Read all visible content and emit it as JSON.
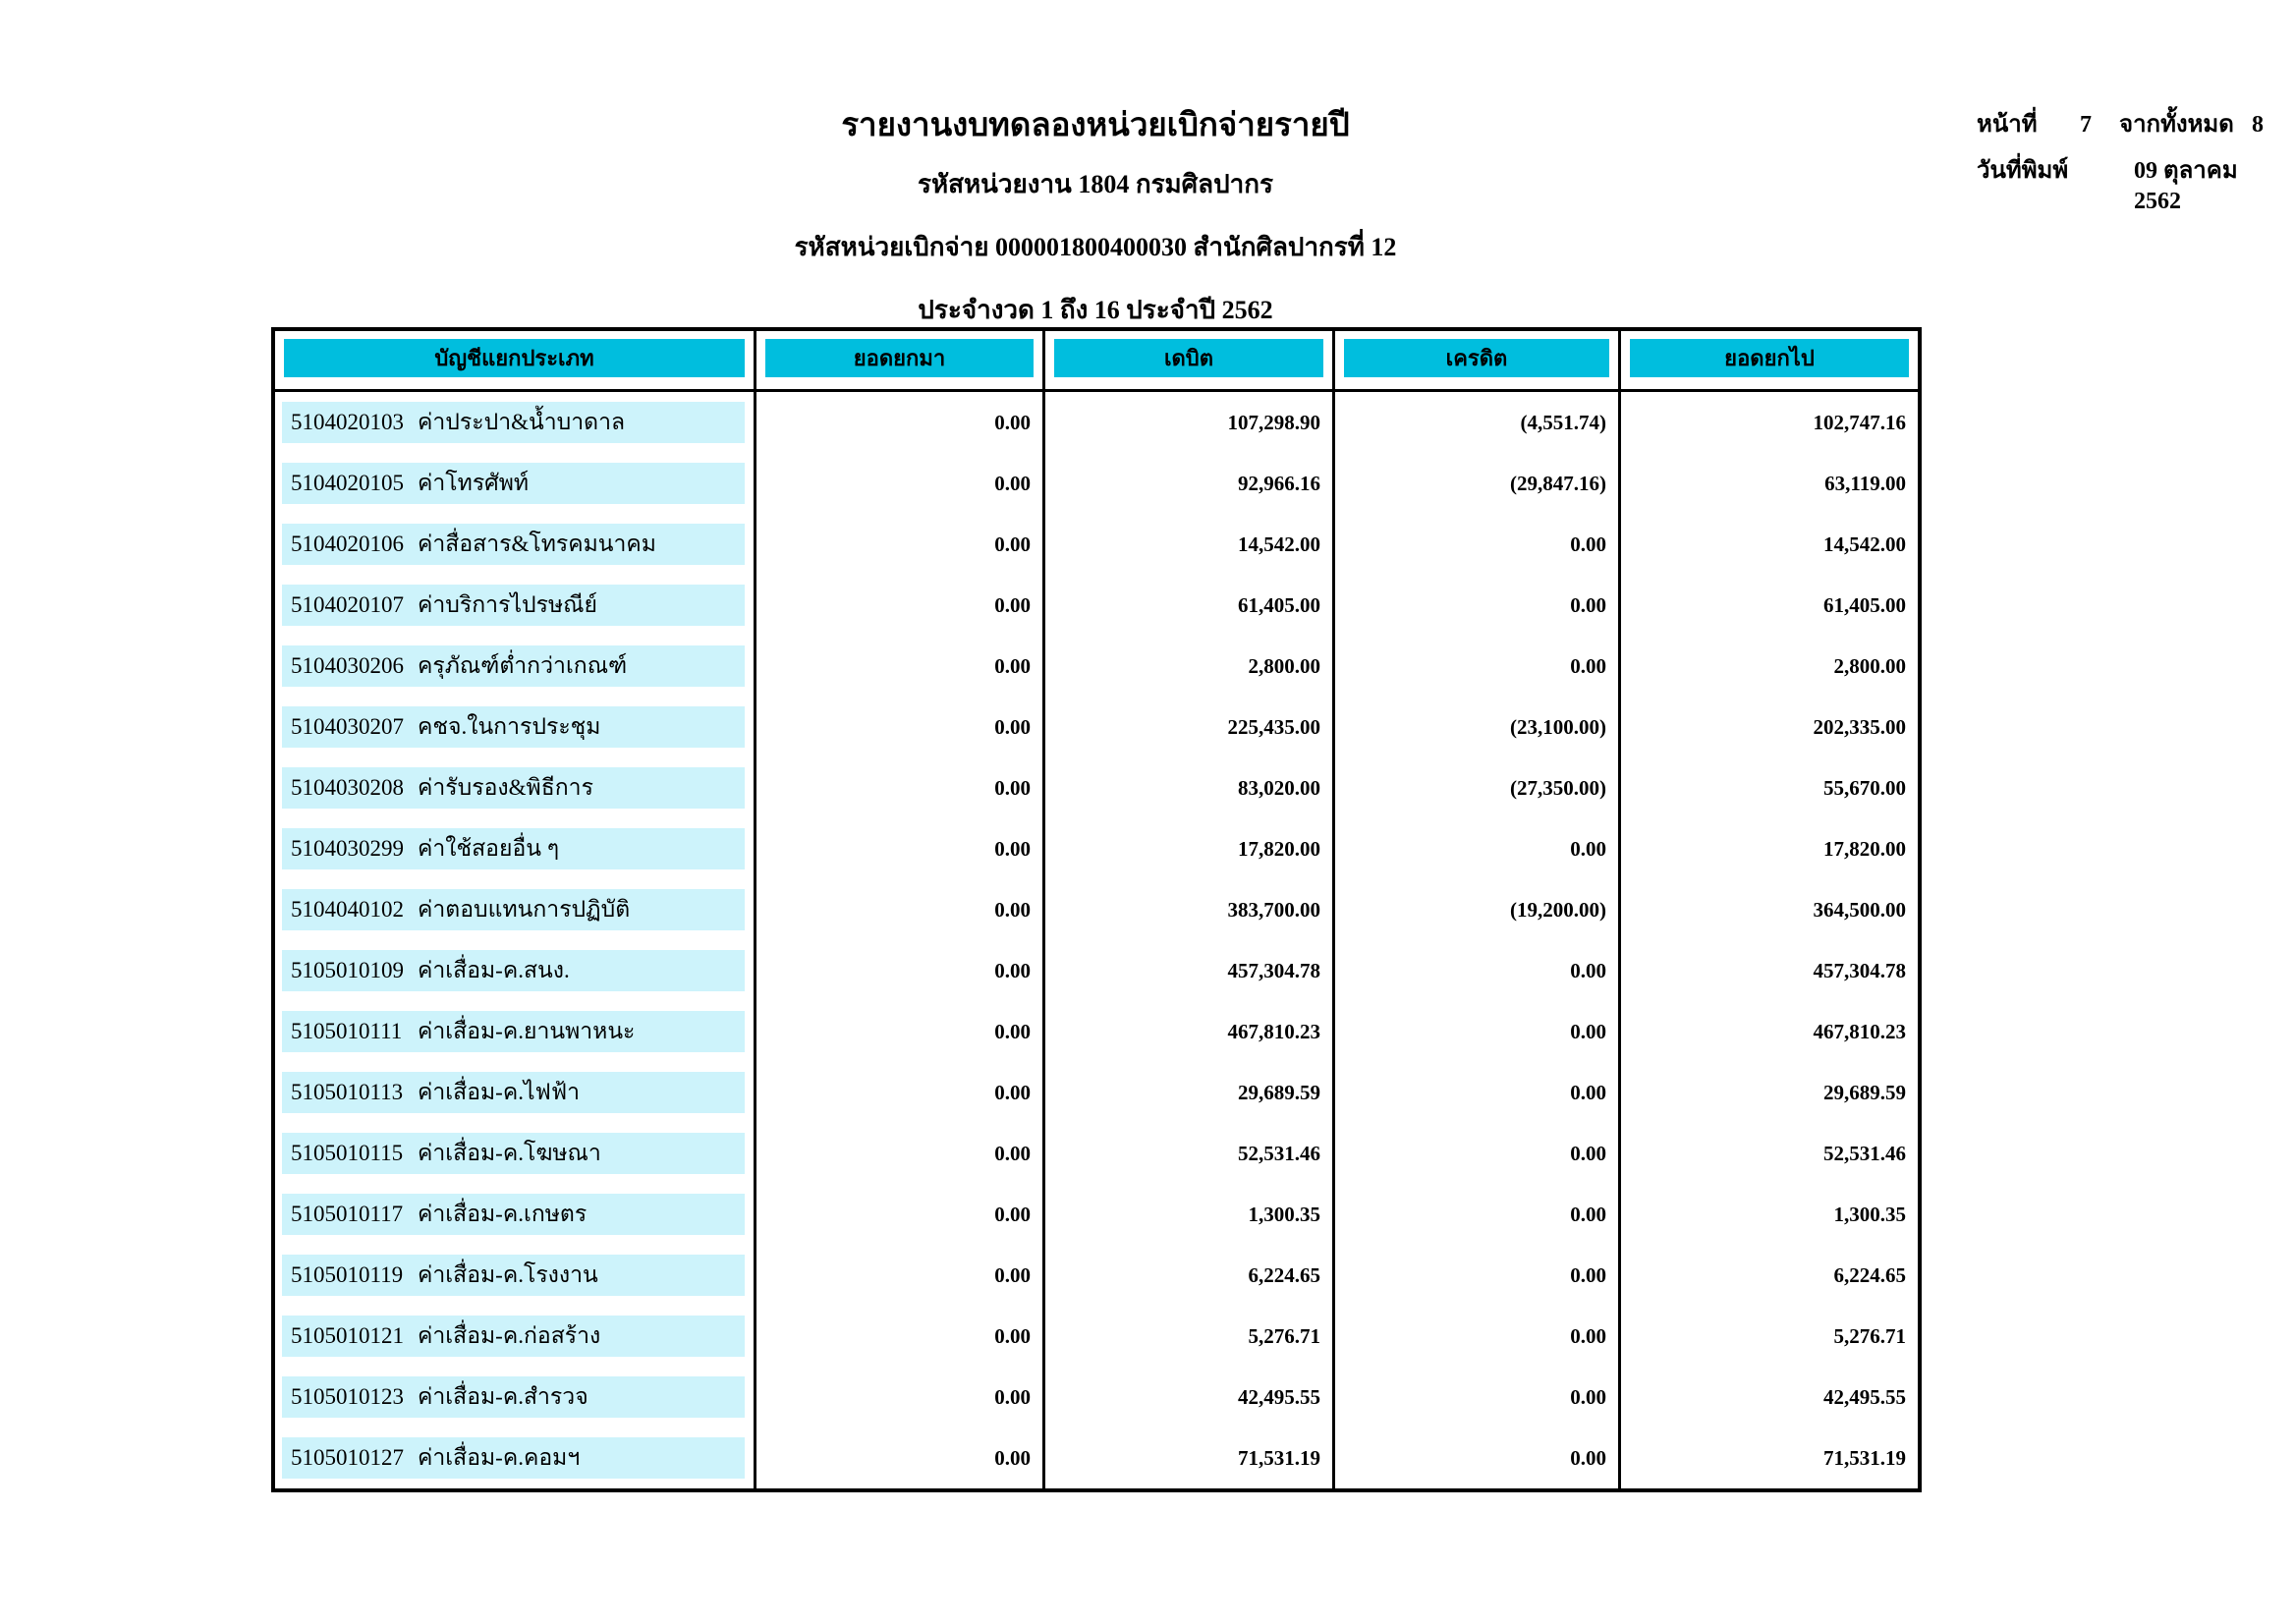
{
  "page": {
    "title": "รายงานงบทดลองหน่วยเบิกจ่ายรายปี",
    "subtitle_agency": "รหัสหน่วยงาน 1804 กรมศิลปากร",
    "subtitle_unit": "รหัสหน่วยเบิกจ่าย 000001800400030 สำนักศิลปากรที่ 12",
    "subtitle_period": "ประจำงวด 1 ถึง 16 ประจำปี 2562",
    "page_label": "หน้าที่",
    "page_number": "7",
    "total_label": "จากทั้งหมด",
    "total_pages": "8",
    "print_date_label": "วันที่พิมพ์",
    "print_date": "09 ตุลาคม 2562"
  },
  "colors": {
    "header_bg": "#00BEDE",
    "row_band_bg": "#CDF3FB",
    "border": "#000000"
  },
  "table": {
    "headers": [
      "บัญชีแยกประเภท",
      "ยอดยกมา",
      "เดบิต",
      "เครดิต",
      "ยอดยกไป"
    ],
    "rows": [
      {
        "code": "5104020103",
        "name": "ค่าประปา&น้ำบาดาล",
        "carry": "0.00",
        "debit": "107,298.90",
        "credit": "(4,551.74)",
        "balance": "102,747.16"
      },
      {
        "code": "5104020105",
        "name": "ค่าโทรศัพท์",
        "carry": "0.00",
        "debit": "92,966.16",
        "credit": "(29,847.16)",
        "balance": "63,119.00"
      },
      {
        "code": "5104020106",
        "name": "ค่าสื่อสาร&โทรคมนาคม",
        "carry": "0.00",
        "debit": "14,542.00",
        "credit": "0.00",
        "balance": "14,542.00"
      },
      {
        "code": "5104020107",
        "name": "ค่าบริการไปรษณีย์",
        "carry": "0.00",
        "debit": "61,405.00",
        "credit": "0.00",
        "balance": "61,405.00"
      },
      {
        "code": "5104030206",
        "name": "ครุภัณฑ์ต่ำกว่าเกณฑ์",
        "carry": "0.00",
        "debit": "2,800.00",
        "credit": "0.00",
        "balance": "2,800.00"
      },
      {
        "code": "5104030207",
        "name": "คชจ.ในการประชุม",
        "carry": "0.00",
        "debit": "225,435.00",
        "credit": "(23,100.00)",
        "balance": "202,335.00"
      },
      {
        "code": "5104030208",
        "name": "ค่ารับรอง&พิธีการ",
        "carry": "0.00",
        "debit": "83,020.00",
        "credit": "(27,350.00)",
        "balance": "55,670.00"
      },
      {
        "code": "5104030299",
        "name": "ค่าใช้สอยอื่น ๆ",
        "carry": "0.00",
        "debit": "17,820.00",
        "credit": "0.00",
        "balance": "17,820.00"
      },
      {
        "code": "5104040102",
        "name": "ค่าตอบแทนการปฏิบัติ",
        "carry": "0.00",
        "debit": "383,700.00",
        "credit": "(19,200.00)",
        "balance": "364,500.00"
      },
      {
        "code": "5105010109",
        "name": "ค่าเสื่อม-ค.สนง.",
        "carry": "0.00",
        "debit": "457,304.78",
        "credit": "0.00",
        "balance": "457,304.78"
      },
      {
        "code": "5105010111",
        "name": "ค่าเสื่อม-ค.ยานพาหนะ",
        "carry": "0.00",
        "debit": "467,810.23",
        "credit": "0.00",
        "balance": "467,810.23"
      },
      {
        "code": "5105010113",
        "name": "ค่าเสื่อม-ค.ไฟฟ้า",
        "carry": "0.00",
        "debit": "29,689.59",
        "credit": "0.00",
        "balance": "29,689.59"
      },
      {
        "code": "5105010115",
        "name": "ค่าเสื่อม-ค.โฆษณา",
        "carry": "0.00",
        "debit": "52,531.46",
        "credit": "0.00",
        "balance": "52,531.46"
      },
      {
        "code": "5105010117",
        "name": "ค่าเสื่อม-ค.เกษตร",
        "carry": "0.00",
        "debit": "1,300.35",
        "credit": "0.00",
        "balance": "1,300.35"
      },
      {
        "code": "5105010119",
        "name": "ค่าเสื่อม-ค.โรงงาน",
        "carry": "0.00",
        "debit": "6,224.65",
        "credit": "0.00",
        "balance": "6,224.65"
      },
      {
        "code": "5105010121",
        "name": "ค่าเสื่อม-ค.ก่อสร้าง",
        "carry": "0.00",
        "debit": "5,276.71",
        "credit": "0.00",
        "balance": "5,276.71"
      },
      {
        "code": "5105010123",
        "name": "ค่าเสื่อม-ค.สำรวจ",
        "carry": "0.00",
        "debit": "42,495.55",
        "credit": "0.00",
        "balance": "42,495.55"
      },
      {
        "code": "5105010127",
        "name": "ค่าเสื่อม-ค.คอมฯ",
        "carry": "0.00",
        "debit": "71,531.19",
        "credit": "0.00",
        "balance": "71,531.19"
      }
    ]
  }
}
